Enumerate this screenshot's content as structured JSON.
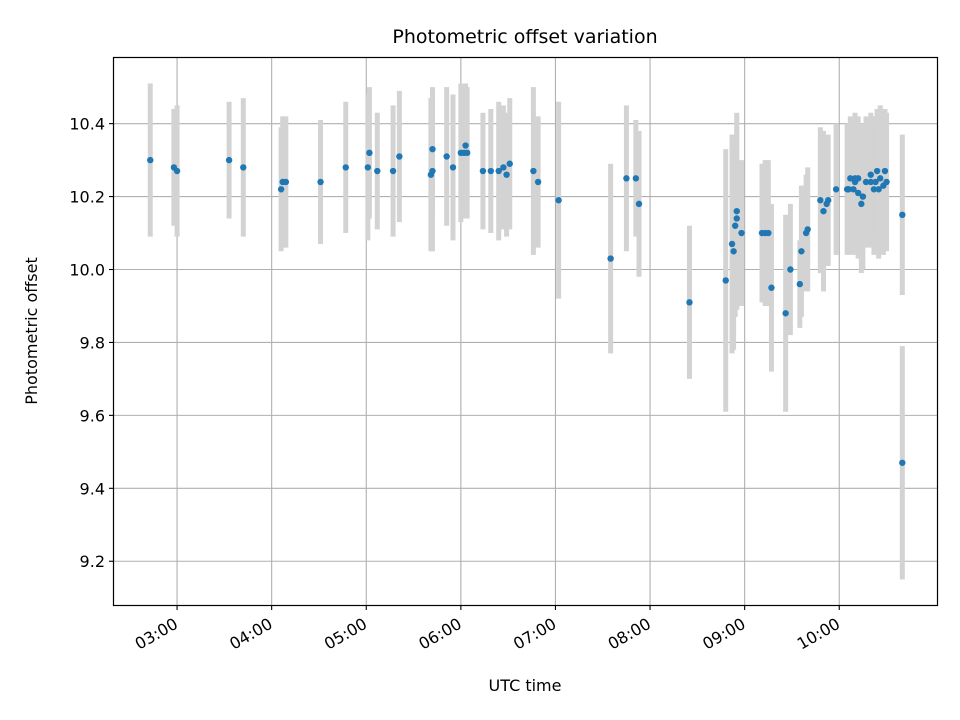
{
  "chart_data": {
    "type": "scatter",
    "title": "Photometric offset variation",
    "xlabel": "UTC time",
    "ylabel": "Photometric offset",
    "x_ticks": [
      "03:00",
      "04:00",
      "05:00",
      "06:00",
      "07:00",
      "08:00",
      "09:00",
      "10:00"
    ],
    "y_ticks": [
      "9.2",
      "9.4",
      "9.6",
      "9.8",
      "10.0",
      "10.2",
      "10.4"
    ],
    "xlim": [
      "02:20",
      "11:02"
    ],
    "ylim": [
      9.08,
      10.58
    ],
    "grid": true,
    "colors": {
      "marker": "#1f77b4",
      "errorbar": "#d3d3d3",
      "grid": "#b0b0b0"
    },
    "series": [
      {
        "x": [
          "02:43",
          "02:58",
          "03:00",
          "03:33",
          "03:42",
          "04:06",
          "04:07",
          "04:09",
          "04:31",
          "04:47",
          "05:01",
          "05:02",
          "05:07",
          "05:17",
          "05:21",
          "05:41",
          "05:42",
          "05:42",
          "05:51",
          "05:55",
          "06:00",
          "06:02",
          "06:03",
          "06:04",
          "06:14",
          "06:19",
          "06:24",
          "06:27",
          "06:29",
          "06:31",
          "06:46",
          "06:49",
          "07:02",
          "07:35",
          "07:45",
          "07:51",
          "07:53",
          "08:25",
          "08:48",
          "08:52",
          "08:53",
          "08:54",
          "08:55",
          "08:55",
          "08:58",
          "09:11",
          "09:13",
          "09:15",
          "09:17",
          "09:26",
          "09:29",
          "09:35",
          "09:36",
          "09:39",
          "09:40",
          "09:48",
          "09:50",
          "09:52",
          "09:53",
          "09:58",
          "10:05",
          "10:06",
          "10:07",
          "10:09",
          "10:10",
          "10:10",
          "10:12",
          "10:12",
          "10:14",
          "10:15",
          "10:17",
          "10:20",
          "10:20",
          "10:22",
          "10:23",
          "10:24",
          "10:25",
          "10:26",
          "10:28",
          "10:29",
          "10:30",
          "10:40"
        ],
        "y": [
          10.3,
          10.28,
          10.27,
          10.3,
          10.28,
          10.22,
          10.24,
          10.24,
          10.24,
          10.28,
          10.28,
          10.32,
          10.27,
          10.27,
          10.31,
          10.26,
          10.27,
          10.33,
          10.31,
          10.28,
          10.32,
          10.32,
          10.34,
          10.32,
          10.27,
          10.27,
          10.27,
          10.28,
          10.26,
          10.29,
          10.27,
          10.24,
          10.19,
          10.03,
          10.25,
          10.25,
          10.18,
          9.91,
          9.97,
          10.07,
          10.05,
          10.12,
          10.16,
          10.14,
          10.1,
          10.1,
          10.1,
          10.1,
          9.95,
          9.88,
          10.0,
          9.96,
          10.05,
          10.1,
          10.11,
          10.19,
          10.16,
          10.18,
          10.19,
          10.22,
          10.22,
          10.22,
          10.25,
          10.22,
          10.24,
          10.25,
          10.21,
          10.25,
          10.18,
          10.2,
          10.24,
          10.24,
          10.26,
          10.22,
          10.24,
          10.27,
          10.22,
          10.25,
          10.23,
          10.27,
          10.24,
          10.15
        ],
        "yerr": [
          0.21,
          0.16,
          0.18,
          0.16,
          0.19,
          0.17,
          0.18,
          0.18,
          0.17,
          0.18,
          0.2,
          0.18,
          0.16,
          0.18,
          0.18,
          0.21,
          0.22,
          0.17,
          0.19,
          0.2,
          0.19,
          0.18,
          0.17,
          0.18,
          0.16,
          0.17,
          0.19,
          0.17,
          0.17,
          0.18,
          0.23,
          0.18,
          0.27,
          0.26,
          0.2,
          0.16,
          0.2,
          0.21,
          0.36,
          0.3,
          0.27,
          0.25,
          0.27,
          0.25,
          0.2,
          0.19,
          0.2,
          0.2,
          0.23,
          0.27,
          0.18,
          0.12,
          0.18,
          0.16,
          0.17,
          0.2,
          0.22,
          0.17,
          0.18,
          0.18,
          0.18,
          0.18,
          0.17,
          0.18,
          0.17,
          0.18,
          0.18,
          0.17,
          0.19,
          0.2,
          0.18,
          0.18,
          0.17,
          0.18,
          0.18,
          0.17,
          0.19,
          0.2,
          0.19,
          0.17,
          0.19,
          0.22
        ]
      },
      {
        "x": [
          "10:40"
        ],
        "y": [
          9.47
        ],
        "yerr": [
          0.32
        ]
      }
    ]
  }
}
